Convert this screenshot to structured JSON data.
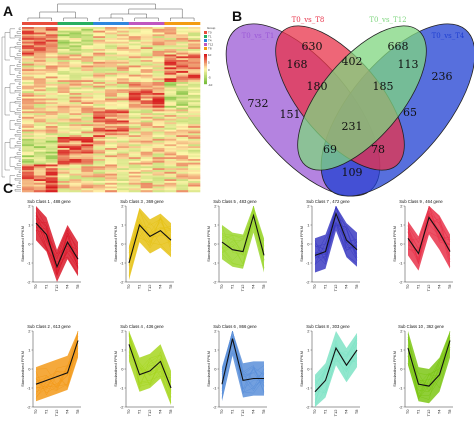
{
  "panels": {
    "a": {
      "label": "A"
    },
    "b": {
      "label": "B"
    },
    "c": {
      "label": "C"
    }
  },
  "heatmap": {
    "legend_title": "Group",
    "legend_items": [
      "T0",
      "T1",
      "T4",
      "T12",
      "T8"
    ],
    "group_colors": [
      "#e74c3c",
      "#27ae60",
      "#2e86de",
      "#c056c0",
      "#f39c12"
    ],
    "scale_ticks": [
      "10",
      "5",
      "0",
      "-5",
      "-10"
    ],
    "colors": {
      "high": "#d7191c",
      "mid": "#ffffbf",
      "low": "#1a9641"
    }
  },
  "venn": {
    "sets": [
      {
        "name": "T0_vs_T1",
        "color": "#9b59d6"
      },
      {
        "name": "T0_vs_T8",
        "color": "#e8334a"
      },
      {
        "name": "T0_vs_T12",
        "color": "#7fd67f"
      },
      {
        "name": "T0_vs_T4",
        "color": "#1f3fd1"
      }
    ],
    "regions": {
      "only_T1": "732",
      "only_T8": "630",
      "only_T12": "668",
      "only_T4": "236",
      "T1_T8": "168",
      "T8_T12": "402",
      "T12_T4": "113",
      "T1_T4": "109",
      "T1_T8_T12": "180",
      "T8_T12_T4": "185",
      "T1_T12": "151",
      "T8_T4": "65",
      "T1_T8_T4": "78",
      "T1_T12_T4": "69",
      "all": "231"
    }
  },
  "chart_data": [
    {
      "type": "line",
      "title": "Sub Class 1 , 488 gene",
      "x": [
        "T0",
        "T1",
        "T12",
        "T4",
        "T8"
      ],
      "values": [
        1.1,
        0.5,
        -1.2,
        0.1,
        -0.8
      ],
      "ylim": [
        -2,
        2
      ],
      "ylabel": "Standardised FPKM",
      "color": "#d91a2a"
    },
    {
      "type": "line",
      "title": "Sub Class 3 , 369 gene",
      "x": [
        "T0",
        "T1",
        "T12",
        "T4",
        "T8"
      ],
      "values": [
        -1.0,
        1.0,
        0.4,
        0.7,
        0.2
      ],
      "ylim": [
        -2,
        2
      ],
      "ylabel": "Standardised FPKM",
      "color": "#e6c215"
    },
    {
      "type": "line",
      "title": "Sub Class 5 , 483 gene",
      "x": [
        "T0",
        "T1",
        "T12",
        "T4",
        "T8"
      ],
      "values": [
        0.1,
        -0.3,
        -0.4,
        1.5,
        -0.6
      ],
      "ylim": [
        -2,
        2
      ],
      "ylabel": "Standardised FPKM",
      "color": "#9bd62f"
    },
    {
      "type": "line",
      "title": "Sub Class 7 , 472 gene",
      "x": [
        "T0",
        "T1",
        "T12",
        "T4",
        "T8"
      ],
      "values": [
        -0.6,
        -0.4,
        1.6,
        0.2,
        -0.3
      ],
      "ylim": [
        -2,
        2
      ],
      "ylabel": "Standardised FPKM",
      "color": "#3b3bc2"
    },
    {
      "type": "line",
      "title": "Sub Class 9 , 464 gene",
      "x": [
        "T0",
        "T1",
        "T12",
        "T4",
        "T8"
      ],
      "values": [
        0.3,
        -0.5,
        1.4,
        0.6,
        -0.4
      ],
      "ylim": [
        -2,
        2
      ],
      "ylabel": "Standardised FPKM",
      "color": "#e8334a"
    },
    {
      "type": "line",
      "title": "Sub Class 2 , 613 gene",
      "x": [
        "T0",
        "T1",
        "T12",
        "T4",
        "T8"
      ],
      "values": [
        -0.8,
        -0.6,
        -0.4,
        -0.2,
        1.5
      ],
      "ylim": [
        -2,
        2
      ],
      "ylabel": "Standardised FPKM",
      "color": "#f39a1a"
    },
    {
      "type": "line",
      "title": "Sub Class 4 , 436 gene",
      "x": [
        "T0",
        "T1",
        "T12",
        "T4",
        "T8"
      ],
      "values": [
        1.3,
        -0.3,
        -0.1,
        0.4,
        -1.0
      ],
      "ylim": [
        -2,
        2
      ],
      "ylabel": "Standardised FPKM",
      "color": "#a6d61f"
    },
    {
      "type": "line",
      "title": "Sub Class 6 , 866 gene",
      "x": [
        "T0",
        "T1",
        "T12",
        "T4",
        "T8"
      ],
      "values": [
        -0.8,
        1.6,
        -0.6,
        -0.5,
        -0.5
      ],
      "ylim": [
        -2,
        2
      ],
      "ylabel": "Standardised FPKM",
      "color": "#5a8fd9"
    },
    {
      "type": "line",
      "title": "Sub Class 8 , 303 gene",
      "x": [
        "T0",
        "T1",
        "T12",
        "T4",
        "T8"
      ],
      "values": [
        -1.2,
        -0.6,
        1.1,
        0.2,
        1.0
      ],
      "ylim": [
        -2,
        2
      ],
      "ylabel": "Standardised FPKM",
      "color": "#7fe3c6"
    },
    {
      "type": "line",
      "title": "Sub Class 10 , 362 gene",
      "x": [
        "T0",
        "T1",
        "T12",
        "T4",
        "T8"
      ],
      "values": [
        1.1,
        -0.8,
        -0.9,
        -0.3,
        1.5
      ],
      "ylim": [
        -2,
        2
      ],
      "ylabel": "Standardised FPKM",
      "color": "#7cc715"
    }
  ]
}
